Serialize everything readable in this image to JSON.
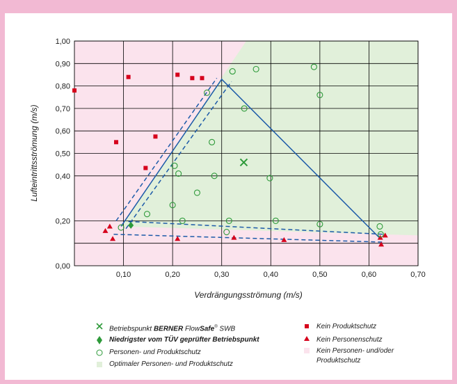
{
  "chart_data": {
    "type": "scatter",
    "xlabel": "Verdrängungsströmung (m/s)",
    "ylabel": "Lufteintrittsströmung (m/s)",
    "xlim": [
      0,
      0.7
    ],
    "ylim": [
      0,
      1.0
    ],
    "x_ticks": [
      "0,10",
      "0,20",
      "0,30",
      "0,40",
      "0,50",
      "0,60",
      "0,70"
    ],
    "x_tick_values": [
      0.1,
      0.2,
      0.3,
      0.4,
      0.5,
      0.6,
      0.7
    ],
    "y_ticks": [
      "0,00",
      "0,20",
      "0,40",
      "0,50",
      "0,60",
      "0,70",
      "0,80",
      "0,90",
      "1,00"
    ],
    "y_tick_values": [
      0.0,
      0.2,
      0.4,
      0.5,
      0.6,
      0.7,
      0.8,
      0.9,
      1.0
    ],
    "grid": true,
    "legend_position": "bottom",
    "colors": {
      "page_border": "#f2b9d3",
      "zone_no_protection": "#fbe3ed",
      "zone_optimal": "#e1f0da",
      "green": "#2e9a3a",
      "red": "#d6001c",
      "blue": "#1c5aa8"
    },
    "series": [
      {
        "name": "Kein Produktschutz",
        "marker": "square",
        "x": [
          0.0,
          0.085,
          0.11,
          0.165,
          0.145,
          0.21,
          0.24,
          0.26
        ],
        "y": [
          0.78,
          0.55,
          0.84,
          0.575,
          0.435,
          0.85,
          0.835,
          0.835
        ]
      },
      {
        "name": "Kein Personenschutz",
        "marker": "triangle",
        "x": [
          0.063,
          0.072,
          0.078,
          0.21,
          0.325,
          0.427,
          0.623,
          0.625,
          0.633
        ],
        "y": [
          0.155,
          0.175,
          0.12,
          0.12,
          0.125,
          0.115,
          0.125,
          0.095,
          0.135
        ]
      },
      {
        "name": "Personen- und Produktschutz",
        "marker": "circle",
        "x": [
          0.095,
          0.148,
          0.2,
          0.204,
          0.212,
          0.22,
          0.25,
          0.27,
          0.28,
          0.285,
          0.31,
          0.315,
          0.322,
          0.346,
          0.37,
          0.398,
          0.41,
          0.488,
          0.5,
          0.5,
          0.622,
          0.624
        ],
        "y": [
          0.17,
          0.23,
          0.27,
          0.445,
          0.41,
          0.2,
          0.325,
          0.77,
          0.55,
          0.4,
          0.15,
          0.2,
          0.865,
          0.7,
          0.875,
          0.39,
          0.2,
          0.885,
          0.76,
          0.185,
          0.175,
          0.14
        ]
      }
    ],
    "betriebspunkt": {
      "x": 0.345,
      "y": 0.46
    },
    "tuev_min_point": {
      "x": 0.115,
      "y": 0.18
    },
    "lines": {
      "solid": [
        [
          0.095,
          0.175
        ],
        [
          0.3,
          0.83
        ],
        [
          0.622,
          0.123
        ]
      ],
      "dashed_upper": [
        [
          0.085,
          0.2
        ],
        [
          0.29,
          0.835
        ]
      ],
      "dashed_lower": [
        [
          0.105,
          0.165
        ],
        [
          0.32,
          0.82
        ]
      ],
      "dashed_flat_upper": [
        [
          0.11,
          0.197
        ],
        [
          0.63,
          0.14
        ]
      ],
      "dashed_flat_lower": [
        [
          0.08,
          0.14
        ],
        [
          0.63,
          0.105
        ]
      ]
    },
    "legend": [
      "Betriebspunkt BERNER FlowSafe® SWB",
      "Niedrigster vom TÜV geprüfter Betriebspunkt",
      "Personen- und Produktschutz",
      "Optimaler Personen- und Produktschutz",
      "Kein Produktschutz",
      "Kein Personenschutz",
      "Kein Personen- und/oder Produktschutz"
    ]
  },
  "legend_text": {
    "l1_pre": "Betriebspunkt ",
    "l1_bold1": "BERNER ",
    "l1_mid": "Flow",
    "l1_bold2": "Safe",
    "l1_sup": "®",
    "l1_post": " SWB",
    "l2": "Niedrigster vom TÜV geprüfter Betriebspunkt",
    "l3": "Personen- und Produktschutz",
    "l4": "Optimaler Personen- und Produktschutz",
    "r1": "Kein Produktschutz",
    "r2": "Kein Personenschutz",
    "r3a": "Kein Personen- und/oder",
    "r3b": "Produktschutz"
  },
  "axes_text": {
    "xlabel": "Verdrängungsströmung (m/s)",
    "ylabel": "Lufteintrittsströmung (m/s)"
  }
}
